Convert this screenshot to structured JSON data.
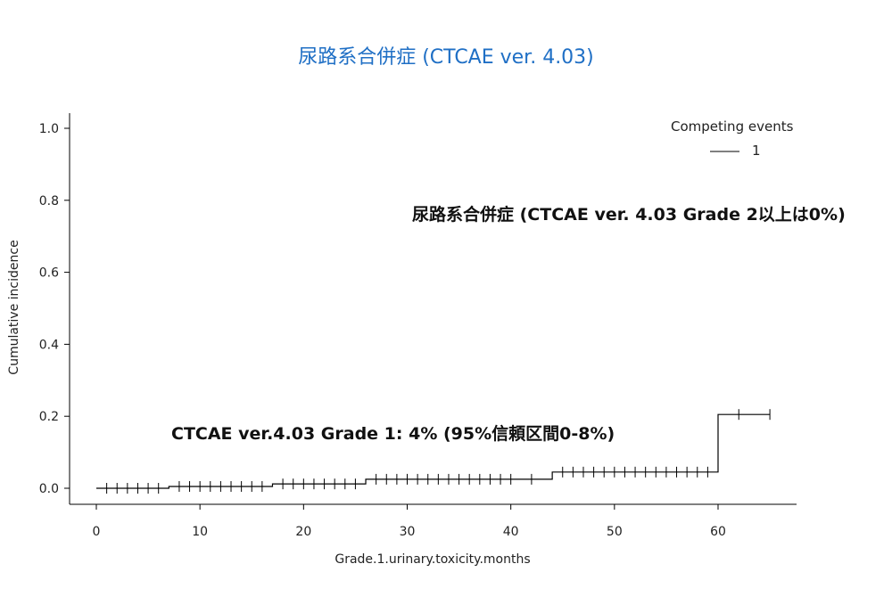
{
  "title": "尿路系合併症 (CTCAE ver. 4.03)",
  "colors": {
    "title": "#1f6fc5",
    "line": "#000000",
    "text": "#222222"
  },
  "annotations": {
    "grade2": "尿路系合併症 (CTCAE ver. 4.03 Grade 2以上は0%)",
    "grade1": "CTCAE ver.4.03 Grade 1:  4% (95%信頼区間0-8%)"
  },
  "chart_data": {
    "type": "line",
    "step": true,
    "xlabel": "Grade.1.urinary.toxicity.months",
    "ylabel": "Cumulative incidence",
    "xlim": [
      0,
      65
    ],
    "ylim": [
      0,
      1.0
    ],
    "xticks": [
      0,
      10,
      20,
      30,
      40,
      50,
      60
    ],
    "yticks": [
      0.0,
      0.2,
      0.4,
      0.6,
      0.8,
      1.0
    ],
    "grid": false,
    "legend": {
      "title": "Competing events",
      "entries": [
        "1"
      ],
      "position": "top-right"
    },
    "series": [
      {
        "name": "1",
        "x": [
          0,
          7,
          17,
          26,
          44,
          60,
          65
        ],
        "y": [
          0.0,
          0.005,
          0.012,
          0.025,
          0.045,
          0.205,
          0.205
        ]
      }
    ],
    "censor_marks": [
      1,
      2,
      3,
      4,
      5,
      6,
      8,
      9,
      10,
      11,
      12,
      13,
      14,
      15,
      16,
      18,
      19,
      20,
      21,
      22,
      23,
      24,
      25,
      27,
      28,
      29,
      30,
      31,
      32,
      33,
      34,
      35,
      36,
      37,
      38,
      39,
      40,
      42,
      45,
      46,
      47,
      48,
      49,
      50,
      51,
      52,
      53,
      54,
      55,
      56,
      57,
      58,
      59,
      62,
      65
    ]
  }
}
